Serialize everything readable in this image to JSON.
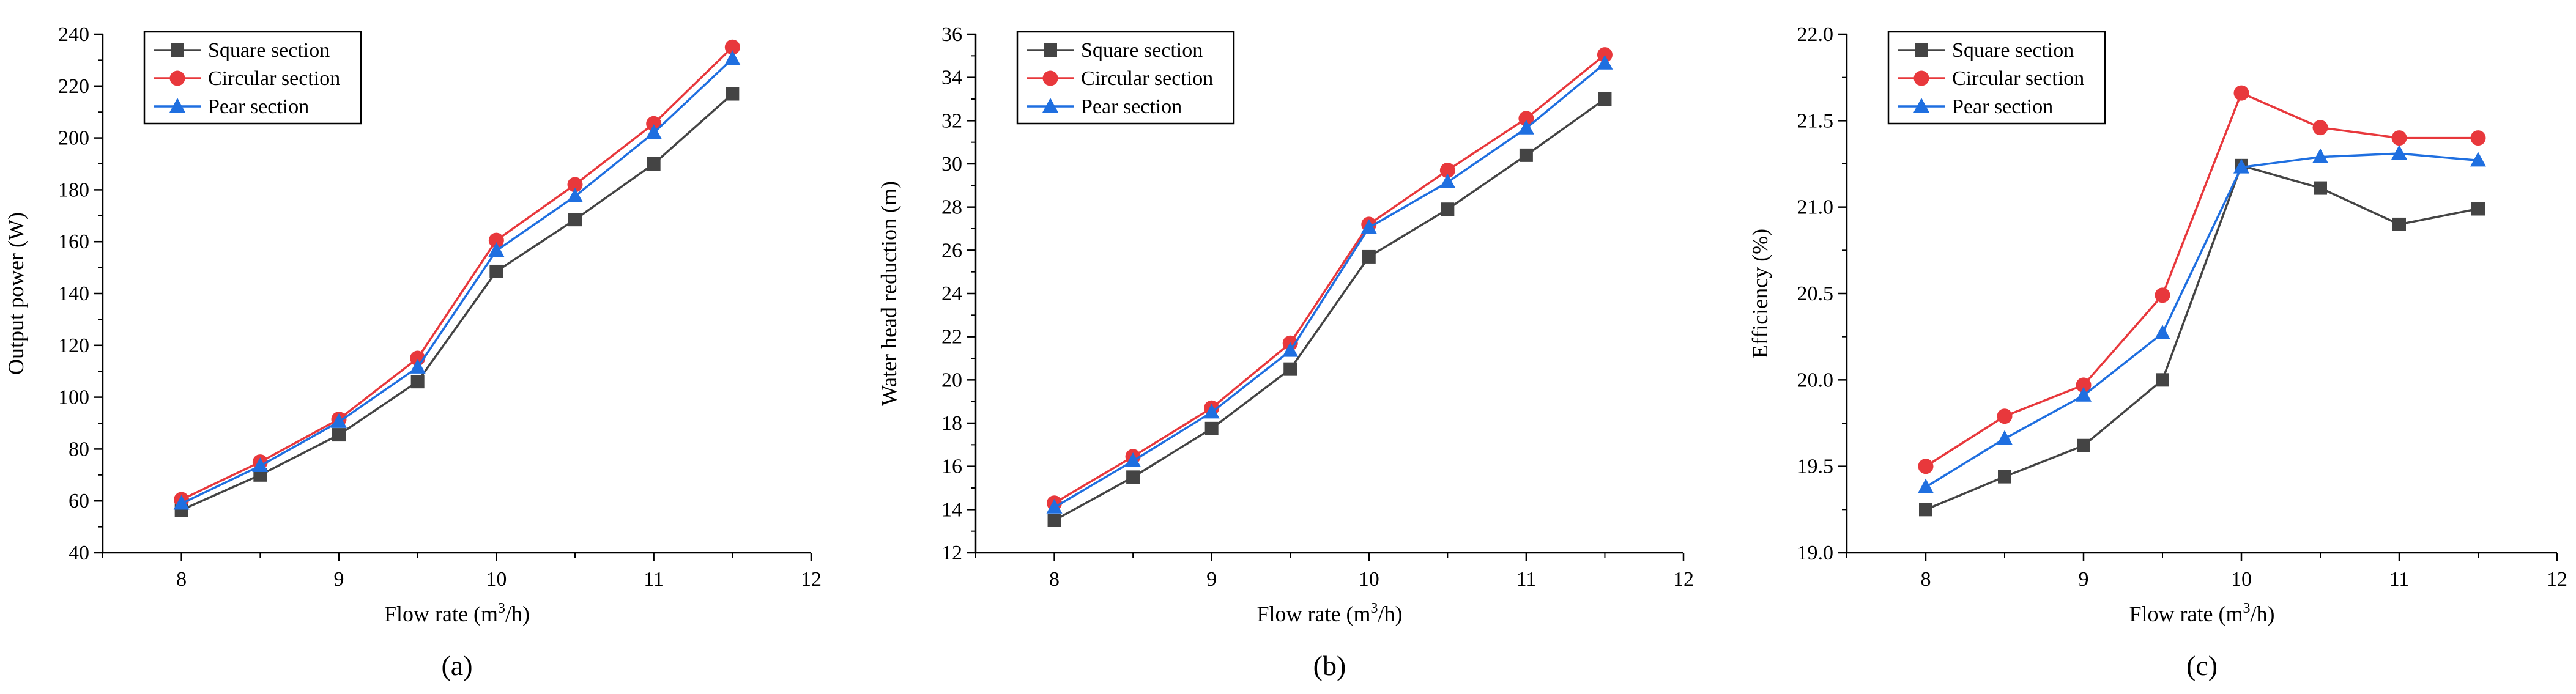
{
  "figure": {
    "panel_labels": [
      "(a)",
      "(b)",
      "(c)"
    ]
  },
  "legend": {
    "entries": [
      {
        "name": "Square section",
        "color": "#444444",
        "marker": "square"
      },
      {
        "name": "Circular section",
        "color": "#e8383c",
        "marker": "circle"
      },
      {
        "name": "Pear section",
        "color": "#1f6fe0",
        "marker": "triangle"
      }
    ]
  },
  "chart_data": [
    {
      "type": "line",
      "panel": "(a)",
      "title": "",
      "xlabel": "Flow rate (m3/h)",
      "ylabel": "Output power (W)",
      "xlim": [
        7.5,
        12
      ],
      "ylim": [
        40,
        240
      ],
      "xticks": [
        8,
        9,
        10,
        11,
        12
      ],
      "yticks": [
        40,
        60,
        80,
        100,
        120,
        140,
        160,
        180,
        200,
        220,
        240
      ],
      "grid": false,
      "legend_position": "top-left",
      "x": [
        8,
        8.5,
        9,
        9.5,
        10,
        10.5,
        11,
        11.5
      ],
      "series": [
        {
          "name": "Square section",
          "values": [
            56.5,
            70,
            85.5,
            106,
            148.5,
            168.5,
            190,
            217
          ]
        },
        {
          "name": "Circular section",
          "values": [
            60.5,
            75,
            91.5,
            115,
            160.5,
            182,
            205.5,
            235
          ]
        },
        {
          "name": "Pear section",
          "values": [
            59,
            73.5,
            90.5,
            111.5,
            156.5,
            177.5,
            202,
            230.5
          ]
        }
      ]
    },
    {
      "type": "line",
      "panel": "(b)",
      "title": "",
      "xlabel": "Flow rate (m3/h)",
      "ylabel": "Water head reduction (m)",
      "xlim": [
        7.5,
        12
      ],
      "ylim": [
        12,
        36
      ],
      "xticks": [
        8,
        9,
        10,
        11,
        12
      ],
      "yticks": [
        12,
        14,
        16,
        18,
        20,
        22,
        24,
        26,
        28,
        30,
        32,
        34,
        36
      ],
      "grid": false,
      "legend_position": "top-left",
      "x": [
        8,
        8.5,
        9,
        9.5,
        10,
        10.5,
        11,
        11.5
      ],
      "series": [
        {
          "name": "Square section",
          "values": [
            13.5,
            15.5,
            17.75,
            20.5,
            25.7,
            27.9,
            30.4,
            33
          ]
        },
        {
          "name": "Circular section",
          "values": [
            14.3,
            16.45,
            18.7,
            21.7,
            27.2,
            29.7,
            32.1,
            35.05
          ]
        },
        {
          "name": "Pear section",
          "values": [
            14.1,
            16.25,
            18.5,
            21.35,
            27.05,
            29.15,
            31.65,
            34.65
          ]
        }
      ]
    },
    {
      "type": "line",
      "panel": "(c)",
      "title": "",
      "xlabel": "Flow rate (m3/h)",
      "ylabel": "Efficiency (%)",
      "xlim": [
        7.5,
        12
      ],
      "ylim": [
        19.0,
        22.0
      ],
      "xticks": [
        8,
        9,
        10,
        11,
        12
      ],
      "yticks": [
        19.0,
        19.5,
        20.0,
        20.5,
        21.0,
        21.5,
        22.0
      ],
      "grid": false,
      "legend_position": "top-left",
      "x": [
        8,
        8.5,
        9,
        9.5,
        10,
        10.5,
        11,
        11.5
      ],
      "series": [
        {
          "name": "Square section",
          "values": [
            19.25,
            19.44,
            19.62,
            20.0,
            21.24,
            21.11,
            20.9,
            20.99
          ]
        },
        {
          "name": "Circular section",
          "values": [
            19.5,
            19.79,
            19.97,
            20.49,
            21.66,
            21.46,
            21.4,
            21.4
          ]
        },
        {
          "name": "Pear section",
          "values": [
            19.38,
            19.66,
            19.91,
            20.27,
            21.23,
            21.29,
            21.31,
            21.27
          ]
        }
      ]
    }
  ]
}
